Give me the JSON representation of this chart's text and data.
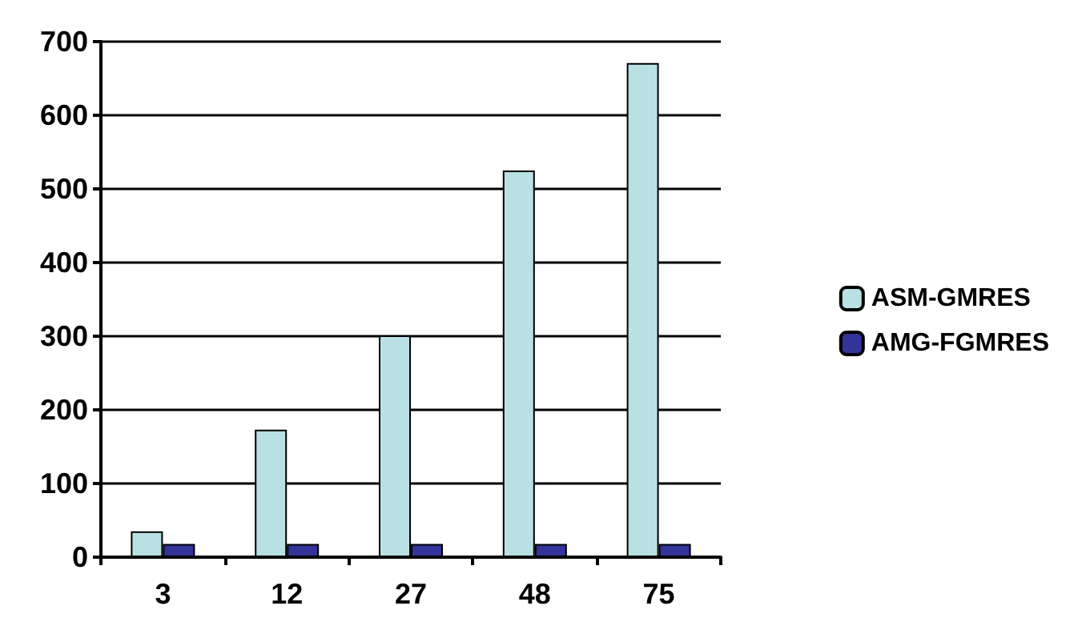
{
  "chart_data": {
    "type": "bar",
    "categories": [
      "3",
      "12",
      "27",
      "48",
      "75"
    ],
    "series": [
      {
        "name": "ASM-GMRES",
        "color": "#b9e0e3",
        "values": [
          35,
          173,
          301,
          525,
          671
        ]
      },
      {
        "name": "AMG-FGMRES",
        "color": "#333399",
        "values": [
          18,
          18,
          18,
          18,
          18
        ]
      }
    ],
    "ylim": [
      0,
      700
    ],
    "yticks": [
      0,
      100,
      200,
      300,
      400,
      500,
      600,
      700
    ],
    "grid": "y",
    "legend": "right"
  }
}
